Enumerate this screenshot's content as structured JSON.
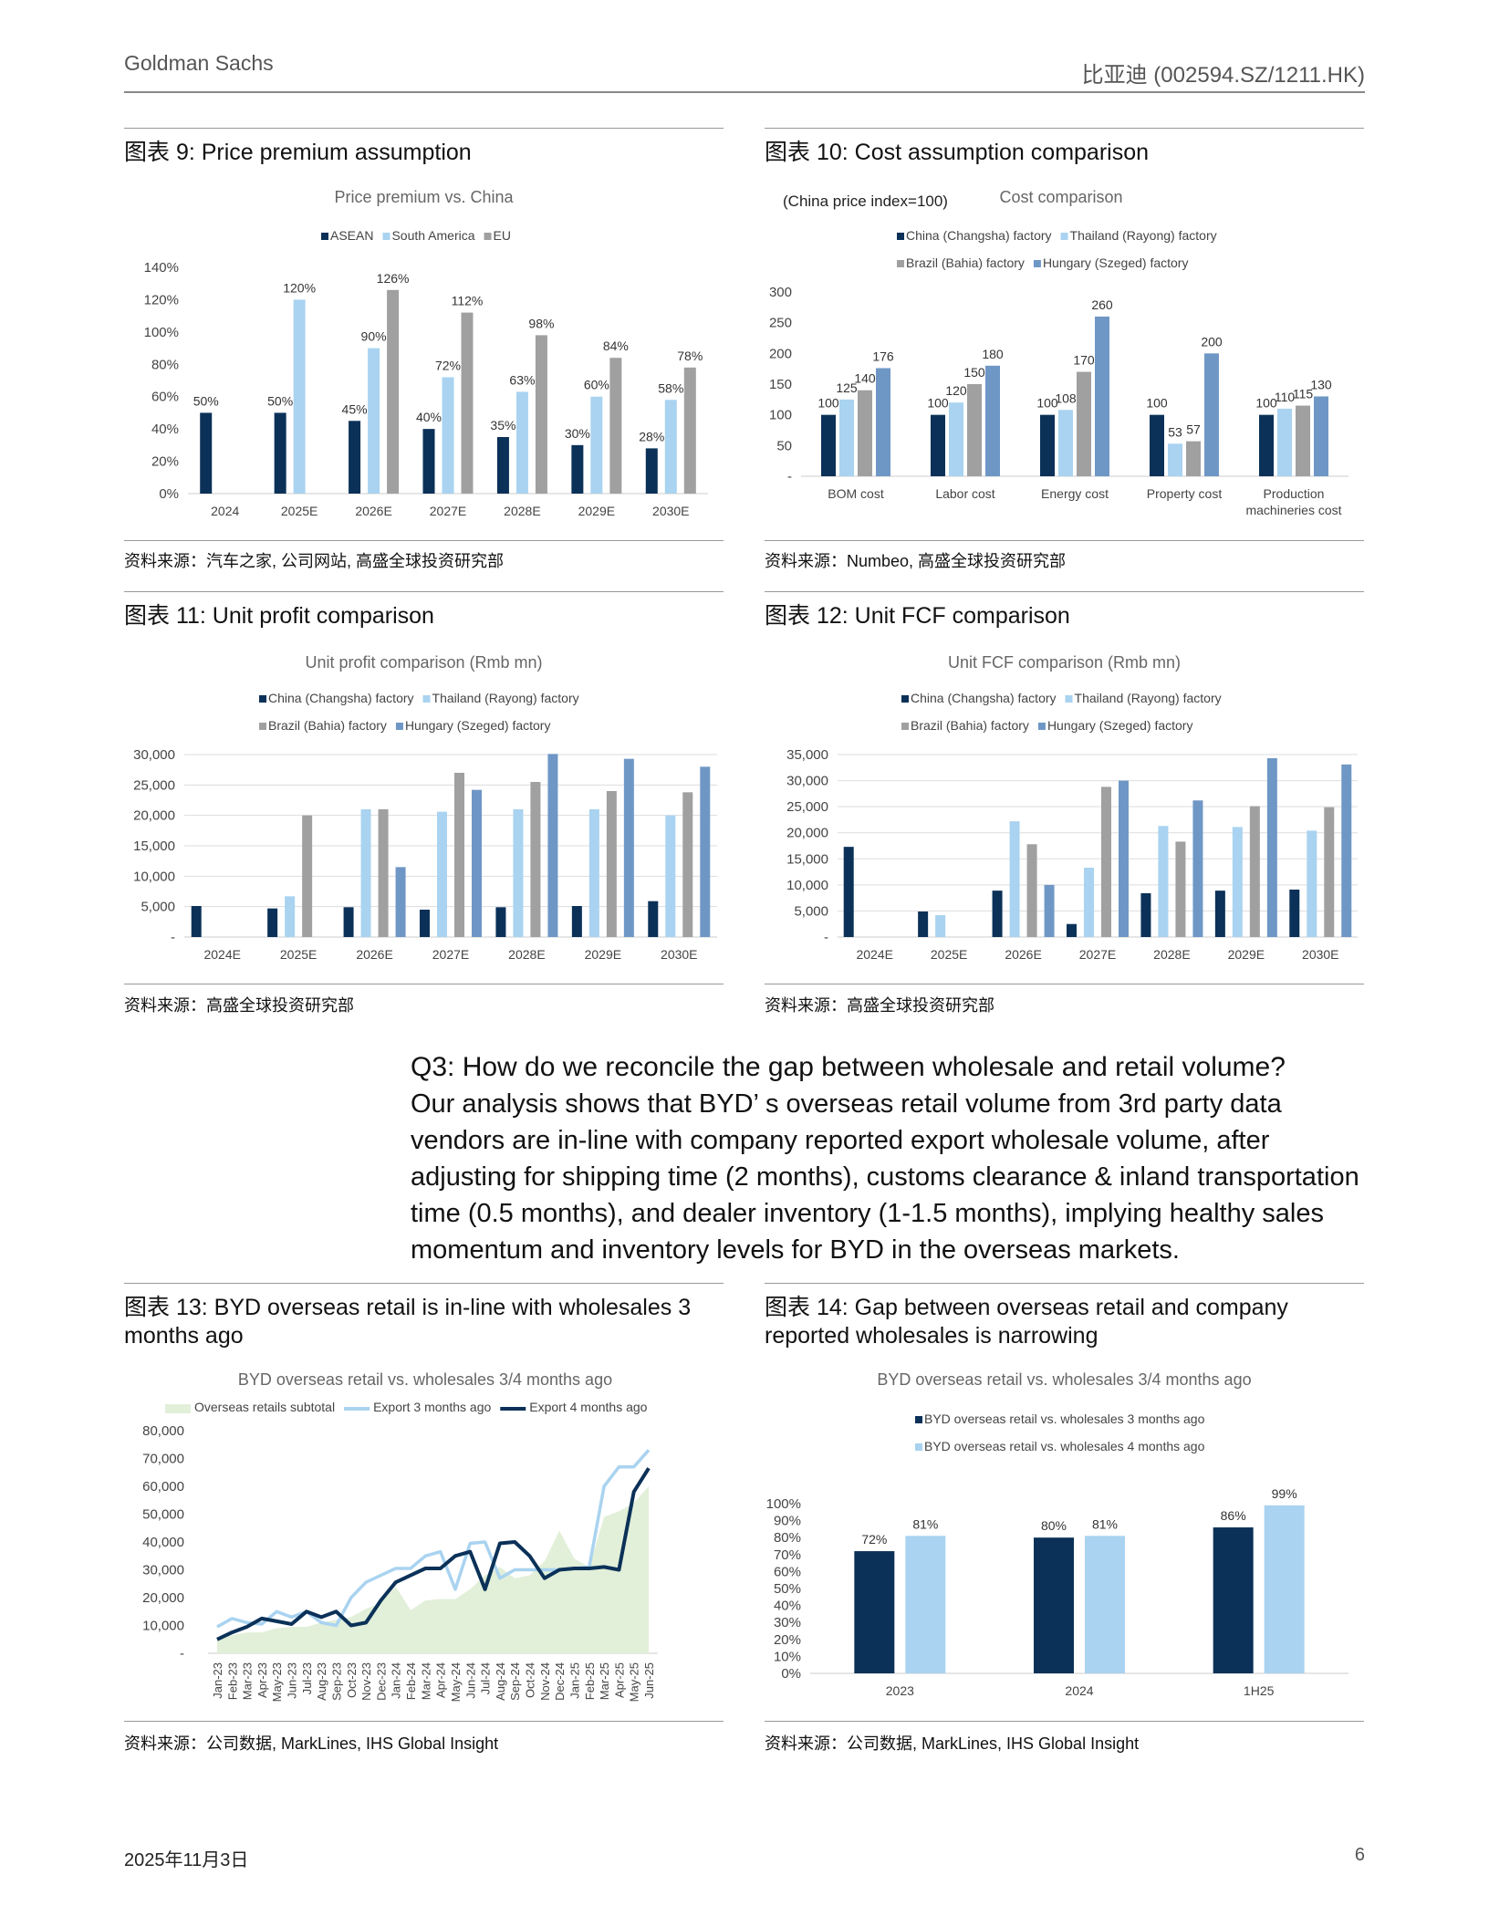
{
  "header": {
    "left": "Goldman Sachs",
    "right": "比亚迪 (002594.SZ/1211.HK)"
  },
  "exhibits": [
    {
      "title": "图表 9: Price premium assumption",
      "source": "资料来源：汽车之家, 公司网站, 高盛全球投资研究部"
    },
    {
      "title": "图表 10: Cost assumption comparison",
      "source": "资料来源：Numbeo, 高盛全球投资研究部"
    },
    {
      "title": "图表 11: Unit profit comparison",
      "source": "资料来源：高盛全球投资研究部"
    },
    {
      "title": "图表 12: Unit FCF comparison",
      "source": "资料来源：高盛全球投资研究部"
    },
    {
      "title": "图表 13: BYD overseas retail is in-line with wholesales 3 months ago",
      "source": "资料来源：公司数据, MarkLines, IHS Global Insight"
    },
    {
      "title": "图表 14: Gap between overseas retail and company reported wholesales is narrowing",
      "source": "资料来源：公司数据, MarkLines, IHS Global Insight"
    }
  ],
  "q3": {
    "question": "Q3: How do we reconcile the gap between wholesale and retail volume?",
    "body": "Our analysis shows that BYD’ s overseas retail volume from 3rd party data vendors are in-line with company reported export wholesale volume, after adjusting for shipping time (2 months), customs clearance & inland transportation time (0.5 months), and dealer inventory (1-1.5 months), implying healthy sales momentum and inventory levels for BYD in the overseas markets."
  },
  "footer": {
    "date": "2025年11月3日",
    "page": "6"
  },
  "colors": {
    "navy": "#0b3158",
    "light": "#a9d3f0",
    "gray": "#a0a0a0",
    "blue": "#6f97c6",
    "area": "#e2efd9"
  },
  "chart_data": [
    {
      "type": "bar",
      "title": "Price premium vs. China",
      "categories": [
        "2024",
        "2025E",
        "2026E",
        "2027E",
        "2028E",
        "2029E",
        "2030E"
      ],
      "yticks": [
        "0%",
        "20%",
        "40%",
        "60%",
        "80%",
        "100%",
        "120%",
        "140%"
      ],
      "ylim": [
        0,
        140
      ],
      "unit": "%",
      "series": [
        {
          "name": "ASEAN",
          "values": [
            50,
            50,
            45,
            40,
            35,
            30,
            28
          ]
        },
        {
          "name": "South America",
          "values": [
            null,
            120,
            90,
            72,
            63,
            60,
            58
          ]
        },
        {
          "name": "EU",
          "values": [
            null,
            null,
            126,
            112,
            98,
            84,
            78
          ]
        }
      ]
    },
    {
      "type": "bar",
      "title": "Cost comparison",
      "subtitle": "(China price index=100)",
      "categories": [
        "BOM cost",
        "Labor cost",
        "Energy cost",
        "Property cost",
        "Production machineries cost"
      ],
      "yticks": [
        "-",
        "50",
        "100",
        "150",
        "200",
        "250",
        "300"
      ],
      "ylim": [
        0,
        300
      ],
      "unit": "",
      "series": [
        {
          "name": "China (Changsha) factory",
          "values": [
            100,
            100,
            100,
            100,
            100
          ]
        },
        {
          "name": "Thailand (Rayong) factory",
          "values": [
            125,
            120,
            108,
            53,
            110
          ]
        },
        {
          "name": "Brazil (Bahia) factory",
          "values": [
            140,
            150,
            170,
            57,
            115
          ]
        },
        {
          "name": "Hungary (Szeged) factory",
          "values": [
            176,
            180,
            260,
            200,
            130
          ]
        }
      ]
    },
    {
      "type": "bar",
      "title": "Unit profit comparison (Rmb mn)",
      "categories": [
        "2024E",
        "2025E",
        "2026E",
        "2027E",
        "2028E",
        "2029E",
        "2030E"
      ],
      "yticks": [
        "-",
        "5,000",
        "10,000",
        "15,000",
        "20,000",
        "25,000",
        "30,000"
      ],
      "ylim": [
        0,
        30000
      ],
      "series": [
        {
          "name": "China (Changsha) factory",
          "values": [
            5100,
            4700,
            4900,
            4500,
            4900,
            5100,
            5900
          ]
        },
        {
          "name": "Thailand (Rayong) factory",
          "values": [
            null,
            6700,
            21000,
            20600,
            21000,
            21000,
            20000
          ]
        },
        {
          "name": "Brazil (Bahia) factory",
          "values": [
            null,
            20000,
            21000,
            27000,
            25500,
            24000,
            23800
          ]
        },
        {
          "name": "Hungary (Szeged) factory",
          "values": [
            null,
            null,
            11500,
            24200,
            30100,
            29300,
            28000
          ]
        }
      ]
    },
    {
      "type": "bar",
      "title": "Unit FCF comparison (Rmb mn)",
      "categories": [
        "2024E",
        "2025E",
        "2026E",
        "2027E",
        "2028E",
        "2029E",
        "2030E"
      ],
      "yticks": [
        "-",
        "5,000",
        "10,000",
        "15,000",
        "20,000",
        "25,000",
        "30,000",
        "35,000"
      ],
      "ylim": [
        0,
        35000
      ],
      "series": [
        {
          "name": "China (Changsha) factory",
          "values": [
            17300,
            4900,
            8900,
            2500,
            8400,
            8900,
            9100
          ]
        },
        {
          "name": "Thailand (Rayong) factory",
          "values": [
            null,
            4200,
            22200,
            13300,
            21300,
            21100,
            20400
          ]
        },
        {
          "name": "Brazil (Bahia) factory",
          "values": [
            null,
            null,
            17800,
            28800,
            18300,
            25100,
            24900
          ]
        },
        {
          "name": "Hungary (Szeged) factory",
          "values": [
            null,
            null,
            10000,
            30000,
            26200,
            34300,
            33100
          ]
        }
      ]
    },
    {
      "type": "line",
      "title": "BYD overseas retail vs. wholesales 3/4 months  ago",
      "x": [
        "Jan-23",
        "Feb-23",
        "Mar-23",
        "Apr-23",
        "May-23",
        "Jun-23",
        "Jul-23",
        "Aug-23",
        "Sep-23",
        "Oct-23",
        "Nov-23",
        "Dec-23",
        "Jan-24",
        "Feb-24",
        "Mar-24",
        "Apr-24",
        "May-24",
        "Jun-24",
        "Jul-24",
        "Aug-24",
        "Sep-24",
        "Oct-24",
        "Nov-24",
        "Dec-24",
        "Jan-25",
        "Feb-25",
        "Mar-25",
        "Apr-25",
        "May-25",
        "Jun-25"
      ],
      "yticks": [
        "-",
        "10,000",
        "20,000",
        "30,000",
        "40,000",
        "50,000",
        "60,000",
        "70,000",
        "80,000"
      ],
      "ylim": [
        0,
        80000
      ],
      "series": [
        {
          "name": "Overseas retails subtotal",
          "kind": "area",
          "values": [
            5000,
            6500,
            7500,
            7500,
            9000,
            9500,
            9500,
            11000,
            12000,
            13000,
            16000,
            18000,
            24000,
            15500,
            19000,
            19500,
            19500,
            23000,
            28000,
            31000,
            27000,
            28000,
            33000,
            44000,
            34000,
            31000,
            49000,
            51000,
            54000,
            60000
          ]
        },
        {
          "name": "Export 3 months ago",
          "kind": "line",
          "values": [
            9500,
            12500,
            11000,
            10500,
            15000,
            13000,
            15000,
            11000,
            10000,
            20000,
            25500,
            28000,
            30500,
            30500,
            35000,
            36500,
            23000,
            39500,
            40000,
            27000,
            30000,
            30000,
            30000,
            30000,
            30500,
            31000,
            60000,
            67000,
            67000,
            73000
          ]
        },
        {
          "name": "Export 4 months ago",
          "kind": "line",
          "values": [
            5000,
            7500,
            9500,
            12500,
            11500,
            10500,
            15000,
            13000,
            15000,
            10000,
            11000,
            19000,
            25500,
            28000,
            30500,
            30500,
            35000,
            36500,
            23000,
            39500,
            40000,
            35000,
            27000,
            30000,
            30500,
            30500,
            31000,
            30000,
            58000,
            66500
          ]
        }
      ]
    },
    {
      "type": "bar",
      "title": "BYD overseas retail vs. wholesales 3/4 months  ago",
      "categories": [
        "2023",
        "2024",
        "1H25"
      ],
      "yticks": [
        "0%",
        "10%",
        "20%",
        "30%",
        "40%",
        "50%",
        "60%",
        "70%",
        "80%",
        "90%",
        "100%"
      ],
      "ylim": [
        0,
        100
      ],
      "unit": "%",
      "series": [
        {
          "name": "BYD overseas retail vs. wholesales 3 months ago",
          "values": [
            72,
            80,
            86
          ]
        },
        {
          "name": "BYD overseas retail vs. wholesales 4 months ago",
          "values": [
            81,
            81,
            99
          ]
        }
      ]
    }
  ]
}
